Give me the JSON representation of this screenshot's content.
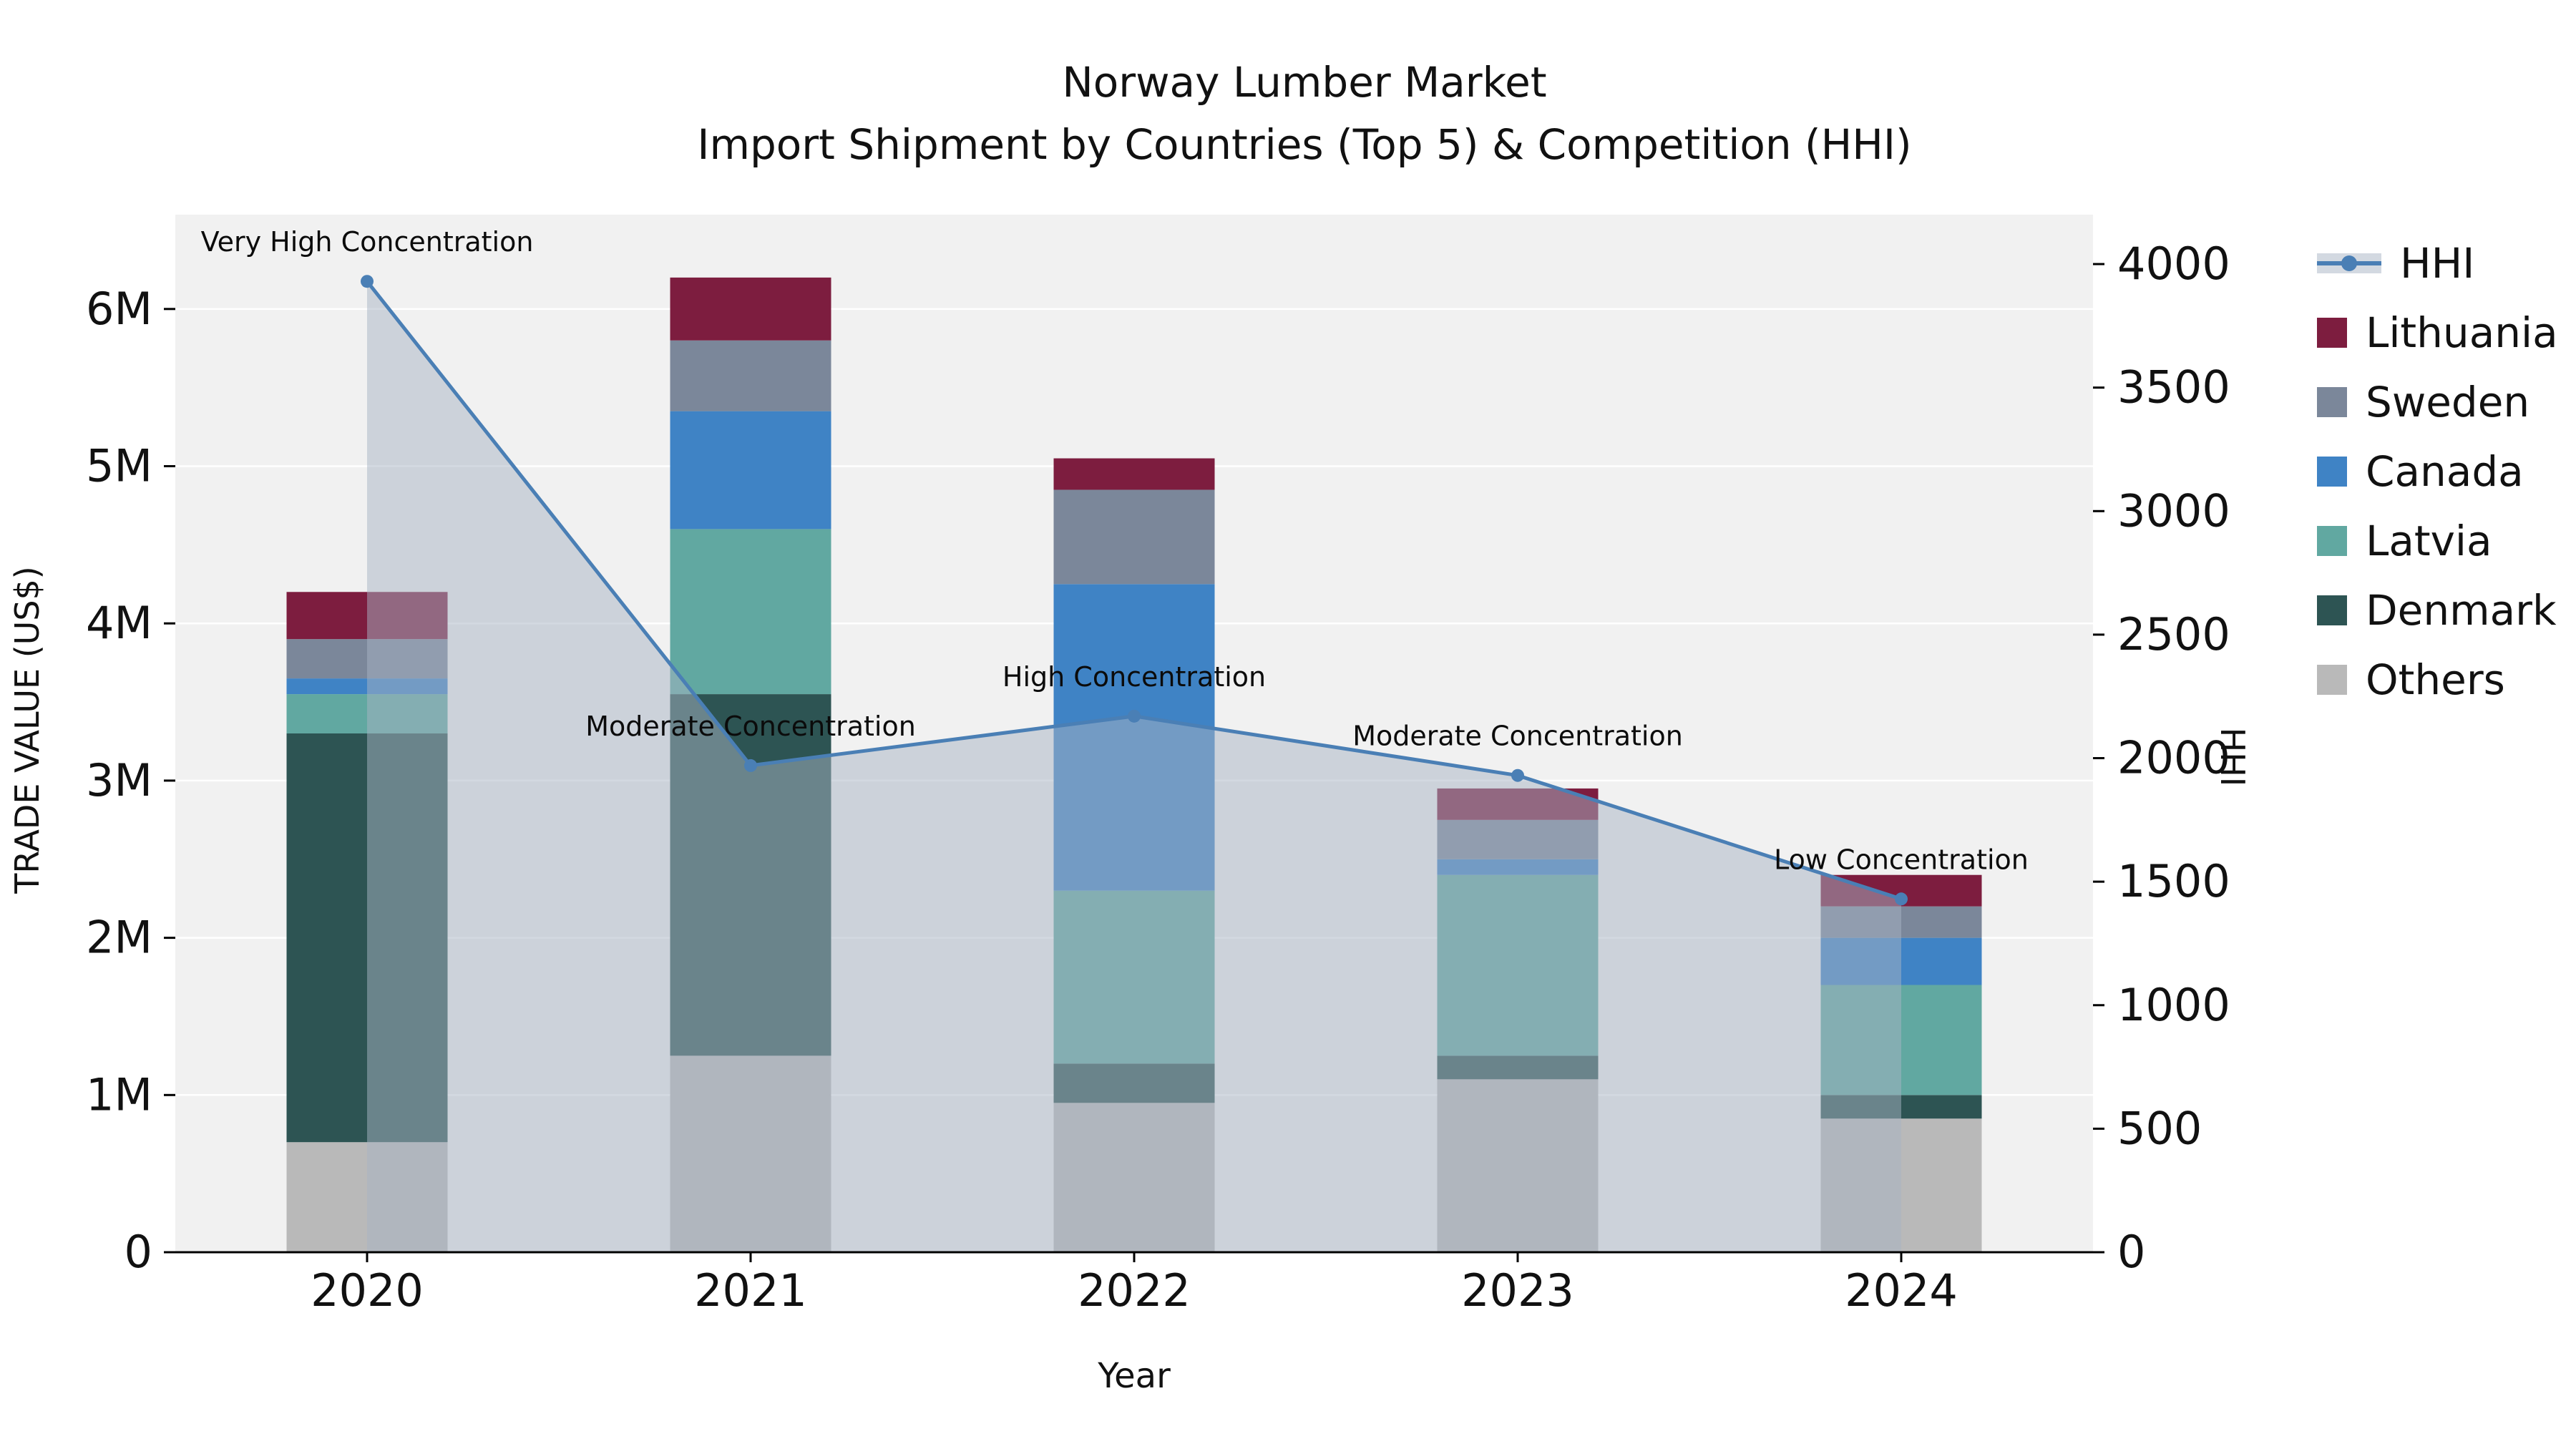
{
  "title": {
    "line1": "Norway Lumber Market",
    "line2": "Import Shipment by Countries (Top 5) & Competition (HHI)"
  },
  "chart_data": {
    "type": "bar",
    "subtype": "stacked-bars-with-hhi-line-and-area",
    "title": "Norway Lumber Market — Import Shipment by Countries (Top 5) & Competition (HHI)",
    "xlabel": "Year",
    "ylabel_left": "TRADE VALUE (US$)",
    "ylabel_right": "HHI",
    "categories": [
      "2020",
      "2021",
      "2022",
      "2023",
      "2024"
    ],
    "series": [
      {
        "name": "Others",
        "color": "#b9b9b9",
        "values": [
          700000,
          1250000,
          950000,
          1100000,
          850000
        ]
      },
      {
        "name": "Denmark",
        "color": "#2d5453",
        "values": [
          2600000,
          2300000,
          250000,
          150000,
          150000
        ]
      },
      {
        "name": "Latvia",
        "color": "#61a8a1",
        "values": [
          250000,
          1050000,
          1100000,
          1150000,
          700000
        ]
      },
      {
        "name": "Canada",
        "color": "#3f83c5",
        "values": [
          100000,
          750000,
          1950000,
          100000,
          300000
        ]
      },
      {
        "name": "Sweden",
        "color": "#7b879a",
        "values": [
          250000,
          450000,
          600000,
          250000,
          200000
        ]
      },
      {
        "name": "Lithuania",
        "color": "#7d1d3f",
        "values": [
          300000,
          400000,
          200000,
          200000,
          200000
        ]
      }
    ],
    "line_series": {
      "name": "HHI",
      "color": "#4a7fb5",
      "area_fill": "rgba(167,179,195,0.5)",
      "values": [
        3930,
        1970,
        2170,
        1930,
        1430
      ]
    },
    "annotations": [
      "Very High Concentration",
      "Moderate Concentration",
      "High Concentration",
      "Moderate Concentration",
      "Low Concentration"
    ],
    "axis_left": {
      "max": 6600000,
      "ticks": [
        {
          "value": 0,
          "label": "0"
        },
        {
          "value": 1000000,
          "label": "1M"
        },
        {
          "value": 2000000,
          "label": "2M"
        },
        {
          "value": 3000000,
          "label": "3M"
        },
        {
          "value": 4000000,
          "label": "4M"
        },
        {
          "value": 5000000,
          "label": "5M"
        },
        {
          "value": 6000000,
          "label": "6M"
        }
      ]
    },
    "axis_right": {
      "max": 4200,
      "ticks": [
        0,
        500,
        1000,
        1500,
        2000,
        2500,
        3000,
        3500,
        4000
      ]
    },
    "legend": [
      {
        "label": "HHI",
        "type": "line",
        "color": "#4a7fb5"
      },
      {
        "label": "Lithuania",
        "type": "square",
        "color": "#7d1d3f"
      },
      {
        "label": "Sweden",
        "type": "square",
        "color": "#7b879a"
      },
      {
        "label": "Canada",
        "type": "square",
        "color": "#3f83c5"
      },
      {
        "label": "Latvia",
        "type": "square",
        "color": "#61a8a1"
      },
      {
        "label": "Denmark",
        "type": "square",
        "color": "#2d5453"
      },
      {
        "label": "Others",
        "type": "square",
        "color": "#b9b9b9"
      }
    ],
    "plot_bg": "#f1f1f1",
    "grid": true,
    "legend_position": "right"
  }
}
